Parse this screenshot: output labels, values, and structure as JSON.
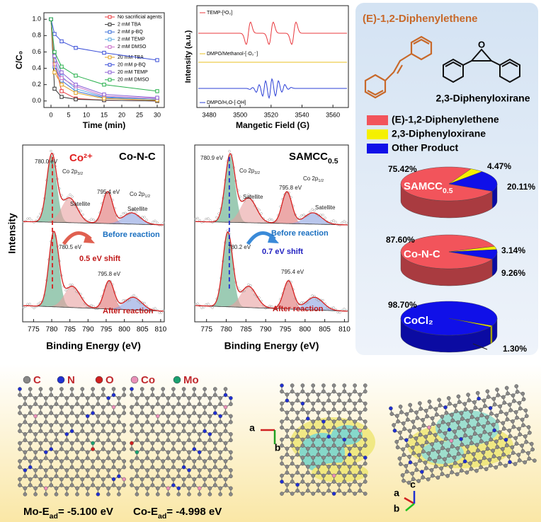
{
  "chart_data": [
    {
      "type": "line",
      "xlabel": "Time (min)",
      "ylabel": "C/C₀",
      "legend": "upper right",
      "x": [
        0,
        1,
        3,
        7,
        15,
        30
      ],
      "xlim": [
        -2,
        32
      ],
      "xticks": [
        0,
        5,
        10,
        15,
        20,
        25,
        30
      ],
      "ylim": [
        -0.08,
        1.08
      ],
      "yticks": [
        {
          "value": 0,
          "label": "0.0"
        },
        {
          "value": 0.2,
          "label": "0.2"
        },
        {
          "value": 0.4,
          "label": "0.4"
        },
        {
          "value": 0.6,
          "label": "0.6"
        },
        {
          "value": 0.8,
          "label": "0.8"
        },
        {
          "value": 1,
          "label": "1.0"
        }
      ],
      "series": [
        {
          "name": "No sacrificial agents",
          "color": "#e8383d",
          "values": [
            1,
            0.48,
            0.12,
            0.03,
            0.01,
            0
          ]
        },
        {
          "name": "2 mM TBA",
          "color": "#333333",
          "values": [
            1,
            0.15,
            0.05,
            0.02,
            0.01,
            0
          ]
        },
        {
          "name": "2 mM p-BQ",
          "color": "#3a6fd8",
          "values": [
            1,
            0.42,
            0.25,
            0.12,
            0.04,
            0.02
          ]
        },
        {
          "name": "2 mM TEMP",
          "color": "#5aa7e0",
          "values": [
            1,
            0.5,
            0.3,
            0.15,
            0.05,
            0.02
          ]
        },
        {
          "name": "2 mM DMSO",
          "color": "#c86fc9",
          "values": [
            1,
            0.45,
            0.28,
            0.18,
            0.06,
            0.03
          ]
        },
        {
          "name": "20 mM TBA",
          "color": "#e0a020",
          "values": [
            1,
            0.35,
            0.2,
            0.1,
            0.03,
            0.01
          ]
        },
        {
          "name": "20 mM p-BQ",
          "color": "#3b4fd8",
          "values": [
            1,
            0.82,
            0.73,
            0.65,
            0.59,
            0.5
          ]
        },
        {
          "name": "20 mM TEMP",
          "color": "#8b5fd6",
          "values": [
            1,
            0.55,
            0.35,
            0.2,
            0.08,
            0.04
          ]
        },
        {
          "name": "20 mM DMSO",
          "color": "#27b04c",
          "values": [
            1,
            0.6,
            0.42,
            0.31,
            0.2,
            0.12
          ]
        }
      ]
    },
    {
      "type": "spectra",
      "xlabel": "Mangetic Field (G)",
      "ylabel": "Intensity (a.u.)",
      "xlim": [
        3472,
        3570
      ],
      "xticks": [
        3480,
        3500,
        3520,
        3540,
        3560
      ],
      "traces": [
        {
          "name": "TEMP-[¹O₂]",
          "color": "#e8383d"
        },
        {
          "name": "DMPO/Methanol-[·O₂⁻]",
          "color": "#e8c020"
        },
        {
          "name": "DMPO/H₂O-[·OH]",
          "color": "#2b3fd6"
        }
      ]
    },
    {
      "type": "xps",
      "tag": "Co²⁺",
      "title": "Co-N-C",
      "xlabel": "Binding Energy (eV)",
      "ylabel": "Intensity",
      "xlim": [
        772,
        811
      ],
      "xticks": [
        775,
        780,
        785,
        790,
        795,
        800,
        805,
        810
      ],
      "annotations": [
        "780.0 eV",
        {
          "text": "Co 2p",
          "sub": "3/2"
        },
        "Satellite",
        "795.4 eV",
        {
          "text": "Co 2p",
          "sub": "1/2"
        },
        "Satellite",
        "Before reaction",
        "780.5 eV",
        "0.5 eV shift",
        "795.8 eV",
        "After reaction"
      ]
    },
    {
      "type": "xps",
      "title": {
        "text": "SAMCC",
        "sub": "0.5"
      },
      "xlabel": "Binding Energy (eV)",
      "xlim": [
        772,
        811
      ],
      "xticks": [
        775,
        780,
        785,
        790,
        795,
        800,
        805,
        810
      ],
      "annotations": [
        "780.9 eV",
        {
          "text": "Co 2p",
          "sub": "3/2"
        },
        "Satellite",
        "795.8 eV",
        {
          "text": "Co 2p",
          "sub": "1/2"
        },
        "Satellite",
        "Before reaction",
        "780.2 eV",
        "0.7 eV shift",
        "795.4 eV",
        "After reaction"
      ]
    },
    {
      "type": "pie",
      "title": "(E)-1,2-Diphenylethene",
      "product": "2,3-Diphenyloxirane",
      "categories": [
        "(E)-1,2-Diphenylethene",
        "2,3-Diphenyloxirane",
        "Other Product"
      ],
      "colors": [
        "#f2545b",
        "#f5f000",
        "#1010e8"
      ],
      "pies": [
        {
          "name": {
            "text": "SAMCC",
            "sub": "0.5"
          },
          "values": [
            75.42,
            4.47,
            20.11
          ],
          "value_labels": [
            "75.42%",
            "4.47%",
            "20.11%"
          ]
        },
        {
          "name": "Co-N-C",
          "values": [
            87.6,
            3.14,
            9.26
          ],
          "value_labels": [
            "87.60%",
            "3.14%",
            "9.26%"
          ]
        },
        {
          "name": "CoCl₂",
          "values": [
            null,
            1.3,
            98.7
          ],
          "value_labels": [
            null,
            "1.30%",
            "98.70%"
          ]
        }
      ]
    }
  ],
  "structures": {
    "legend": [
      "C",
      "N",
      "O",
      "Co",
      "Mo"
    ],
    "energies": [
      {
        "text": "Mo-E",
        "sub": "ad",
        "suffix": "= -5.100 eV"
      },
      {
        "text": "Co-E",
        "sub": "ad",
        "suffix": "= -4.998 eV"
      }
    ],
    "axes": [
      "a",
      "b",
      "a",
      "b",
      "c"
    ]
  }
}
